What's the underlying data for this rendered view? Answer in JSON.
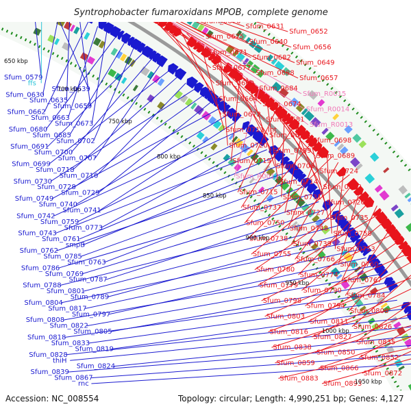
{
  "title": "Syntrophobacter fumaroxidans MPOB, complete genome",
  "footer": {
    "accession": "Accession: NC_008554",
    "topology": "Topology: circular; Length: 4,990,251 bp; Genes: 4,127"
  },
  "colors": {
    "forward": "#e8141c",
    "reverse": "#1a1ad0",
    "rna": "#f07ab8",
    "ffs": "#2ec4d8",
    "backbone": "#9a9a9a",
    "tick": "#1b8a1b"
  },
  "scale": [
    "650 kbp",
    "700 kbp",
    "750 kbp",
    "800 kbp",
    "850 kbp",
    "900 kbp",
    "950 kbp",
    "1000 kbp",
    "1050 kbp"
  ],
  "left_labels": [
    {
      "text": "Sfum_0579",
      "color": "reverse"
    },
    {
      "text": "ffs",
      "color": "ffs"
    },
    {
      "text": "Sfum_0639",
      "color": "reverse"
    },
    {
      "text": "Sfum_0630",
      "color": "reverse"
    },
    {
      "text": "Sfum_0635",
      "color": "reverse"
    },
    {
      "text": "Sfum_0659",
      "color": "reverse"
    },
    {
      "text": "Sfum_0662",
      "color": "reverse"
    },
    {
      "text": "Sfum_0663",
      "color": "reverse"
    },
    {
      "text": "Sfum_0673",
      "color": "reverse"
    },
    {
      "text": "Sfum_0680",
      "color": "reverse"
    },
    {
      "text": "Sfum_0685",
      "color": "reverse"
    },
    {
      "text": "Sfum_0702",
      "color": "reverse"
    },
    {
      "text": "Sfum_0691",
      "color": "reverse"
    },
    {
      "text": "Sfum_0700",
      "color": "reverse"
    },
    {
      "text": "Sfum_0707",
      "color": "reverse"
    },
    {
      "text": "Sfum_0699",
      "color": "reverse"
    },
    {
      "text": "Sfum_0718",
      "color": "reverse"
    },
    {
      "text": "Sfum_0716",
      "color": "reverse"
    },
    {
      "text": "Sfum_0730",
      "color": "reverse"
    },
    {
      "text": "Sfum_0728",
      "color": "reverse"
    },
    {
      "text": "Sfum_0729",
      "color": "reverse"
    },
    {
      "text": "Sfum_0749",
      "color": "reverse"
    },
    {
      "text": "Sfum_0740",
      "color": "reverse"
    },
    {
      "text": "Sfum_0741",
      "color": "reverse"
    },
    {
      "text": "Sfum_0742",
      "color": "reverse"
    },
    {
      "text": "Sfum_0759",
      "color": "reverse"
    },
    {
      "text": "Sfum_0773",
      "color": "reverse"
    },
    {
      "text": "Sfum_0743",
      "color": "reverse"
    },
    {
      "text": "Sfum_0761",
      "color": "reverse"
    },
    {
      "text": "smpB",
      "color": "reverse"
    },
    {
      "text": "Sfum_0762",
      "color": "reverse"
    },
    {
      "text": "Sfum_0785",
      "color": "reverse"
    },
    {
      "text": "Sfum_0763",
      "color": "reverse"
    },
    {
      "text": "Sfum_0786",
      "color": "reverse"
    },
    {
      "text": "Sfum_0769",
      "color": "reverse"
    },
    {
      "text": "Sfum_0787",
      "color": "reverse"
    },
    {
      "text": "Sfum_0788",
      "color": "reverse"
    },
    {
      "text": "Sfum_0801",
      "color": "reverse"
    },
    {
      "text": "Sfum_0789",
      "color": "reverse"
    },
    {
      "text": "Sfum_0804",
      "color": "reverse"
    },
    {
      "text": "Sfum_0817",
      "color": "reverse"
    },
    {
      "text": "Sfum_0797",
      "color": "reverse"
    },
    {
      "text": "Sfum_0808",
      "color": "reverse"
    },
    {
      "text": "Sfum_0822",
      "color": "reverse"
    },
    {
      "text": "Sfum_0805",
      "color": "reverse"
    },
    {
      "text": "Sfum_0818",
      "color": "reverse"
    },
    {
      "text": "Sfum_0833",
      "color": "reverse"
    },
    {
      "text": "Sfum_0819",
      "color": "reverse"
    },
    {
      "text": "Sfum_0828",
      "color": "reverse"
    },
    {
      "text": "thiH",
      "color": "reverse"
    },
    {
      "text": "Sfum_0824",
      "color": "reverse"
    },
    {
      "text": "Sfum_0839",
      "color": "reverse"
    },
    {
      "text": "Sfum_0867",
      "color": "reverse"
    },
    {
      "text": "rnc",
      "color": "reverse"
    }
  ],
  "right_labels": [
    {
      "text": "Sfum_0676",
      "color": "forward"
    },
    {
      "text": "Sfum_0631",
      "color": "forward"
    },
    {
      "text": "Sfum_0652",
      "color": "forward"
    },
    {
      "text": "Sfum_0675",
      "color": "forward"
    },
    {
      "text": "Sfum_0640",
      "color": "forward"
    },
    {
      "text": "Sfum_0656",
      "color": "forward"
    },
    {
      "text": "Sfum_0671",
      "color": "forward"
    },
    {
      "text": "Sfum_0682",
      "color": "forward"
    },
    {
      "text": "Sfum_0649",
      "color": "forward"
    },
    {
      "text": "Sfum_0677",
      "color": "forward"
    },
    {
      "text": "Sfum_0688",
      "color": "forward"
    },
    {
      "text": "Sfum_0657",
      "color": "forward"
    },
    {
      "text": "Sfum_0669",
      "color": "forward"
    },
    {
      "text": "Sfum_0684",
      "color": "forward"
    },
    {
      "text": "Sfum_R0015",
      "color": "rna"
    },
    {
      "text": "Sfum_0664",
      "color": "forward"
    },
    {
      "text": "Sfum_0674",
      "color": "forward"
    },
    {
      "text": "Sfum_R0014",
      "color": "rna"
    },
    {
      "text": "Sfum_0672",
      "color": "forward"
    },
    {
      "text": "Sfum_0681",
      "color": "forward"
    },
    {
      "text": "Sfum_R0013",
      "color": "rna"
    },
    {
      "text": "Sfum_0711_Int",
      "color": "forward"
    },
    {
      "text": "Sfum_0679",
      "color": "forward"
    },
    {
      "text": "Sfum_0698",
      "color": "forward"
    },
    {
      "text": "Sfum_0720",
      "color": "forward"
    },
    {
      "text": "Sfum_0709",
      "color": "forward"
    },
    {
      "text": "Sfum_0689",
      "color": "forward"
    },
    {
      "text": "Sfum_0719",
      "color": "forward"
    },
    {
      "text": "Sfum_0708",
      "color": "forward"
    },
    {
      "text": "Sfum_0724",
      "color": "forward"
    },
    {
      "text": "Sfum_R0012",
      "color": "rna"
    },
    {
      "text": "Sfum_0714",
      "color": "forward"
    },
    {
      "text": "Sfum_0732",
      "color": "forward"
    },
    {
      "text": "Sfum_0715",
      "color": "forward"
    },
    {
      "text": "Sfum_0731",
      "color": "forward"
    },
    {
      "text": "Sfum_0726",
      "color": "forward"
    },
    {
      "text": "Sfum_0737",
      "color": "forward"
    },
    {
      "text": "Sfum_0727",
      "color": "forward"
    },
    {
      "text": "Sfum_0735",
      "color": "forward"
    },
    {
      "text": "Sfum_0750",
      "color": "forward"
    },
    {
      "text": "Sfum_0748",
      "color": "forward"
    },
    {
      "text": "Sfum_0758",
      "color": "forward"
    },
    {
      "text": "Sfum_0738",
      "color": "forward"
    },
    {
      "text": "Sfum_0739",
      "color": "forward"
    },
    {
      "text": "Sfum_0753",
      "color": "forward"
    },
    {
      "text": "Sfum_0755",
      "color": "forward"
    },
    {
      "text": "Sfum_0766",
      "color": "forward"
    },
    {
      "text": "Sfum_0760",
      "color": "forward"
    },
    {
      "text": "Sfum_0780",
      "color": "forward"
    },
    {
      "text": "Sfum_0774",
      "color": "forward"
    },
    {
      "text": "Sfum_0767",
      "color": "forward"
    },
    {
      "text": "Sfum_0779",
      "color": "forward"
    },
    {
      "text": "Sfum_0790",
      "color": "forward"
    },
    {
      "text": "Sfum_0784",
      "color": "forward"
    },
    {
      "text": "Sfum_0798",
      "color": "forward"
    },
    {
      "text": "Sfum_0794",
      "color": "forward"
    },
    {
      "text": "Sfum_0806",
      "color": "forward"
    },
    {
      "text": "Sfum_0803",
      "color": "forward"
    },
    {
      "text": "Sfum_0811",
      "color": "forward"
    },
    {
      "text": "Sfum_0826",
      "color": "forward"
    },
    {
      "text": "Sfum_0816",
      "color": "forward"
    },
    {
      "text": "Sfum_0827",
      "color": "forward"
    },
    {
      "text": "Sfum_0835",
      "color": "forward"
    },
    {
      "text": "Sfum_0838",
      "color": "forward"
    },
    {
      "text": "Sfum_0850",
      "color": "forward"
    },
    {
      "text": "Sfum_0852",
      "color": "forward"
    },
    {
      "text": "Sfum_0859",
      "color": "forward"
    },
    {
      "text": "Sfum_0866",
      "color": "forward"
    },
    {
      "text": "Sfum_0872",
      "color": "forward"
    },
    {
      "text": "Sfum_0883",
      "color": "forward"
    },
    {
      "text": "Sfum_0893",
      "color": "forward"
    }
  ]
}
